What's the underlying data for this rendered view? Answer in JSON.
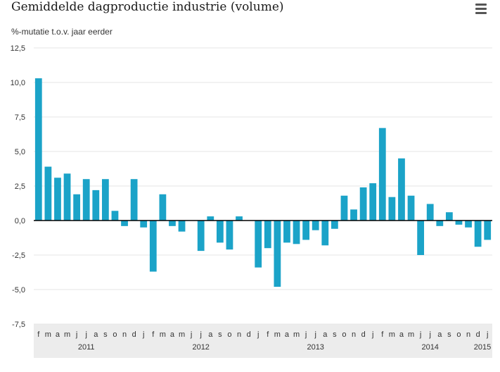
{
  "header": {
    "title": "Gemiddelde dagproductie industrie (volume)",
    "unit": "%-mutatie t.o.v. jaar eerder",
    "menu_icon": "hamburger-menu-icon"
  },
  "colors": {
    "bar": "#1ba3c8",
    "grid": "#e6e6e6",
    "axis_band": "#ececec",
    "zero_line": "#000000"
  },
  "chart_data": {
    "type": "bar",
    "title": "Gemiddelde dagproductie industrie (volume)",
    "ylabel": "%-mutatie t.o.v. jaar eerder",
    "xlabel": "",
    "ylim": [
      -7.5,
      12.5
    ],
    "yticks": [
      "12,5",
      "10,0",
      "7,5",
      "5,0",
      "2,5",
      "0,0",
      "-2,5",
      "-5,0",
      "-7,5"
    ],
    "ytick_values": [
      12.5,
      10,
      7.5,
      5,
      2.5,
      0,
      -2.5,
      -5,
      -7.5
    ],
    "grid": true,
    "categories": [
      "f",
      "m",
      "a",
      "m",
      "j",
      "j",
      "a",
      "s",
      "o",
      "n",
      "d",
      "j",
      "f",
      "m",
      "a",
      "m",
      "j",
      "j",
      "a",
      "s",
      "o",
      "n",
      "d",
      "j",
      "f",
      "m",
      "a",
      "m",
      "j",
      "j",
      "a",
      "s",
      "o",
      "n",
      "d",
      "j",
      "f",
      "m",
      "a",
      "m",
      "j",
      "j",
      "a",
      "s",
      "o",
      "n",
      "d",
      "j"
    ],
    "years": [
      {
        "label": "2011",
        "index": 5
      },
      {
        "label": "2012",
        "index": 17
      },
      {
        "label": "2013",
        "index": 29
      },
      {
        "label": "2014",
        "index": 41
      },
      {
        "label": "2015",
        "index": 47
      }
    ],
    "values": [
      10.3,
      3.9,
      3.1,
      3.4,
      1.9,
      3.0,
      2.2,
      3.0,
      0.7,
      -0.4,
      3.0,
      -0.5,
      -3.7,
      1.9,
      -0.4,
      -0.8,
      0.0,
      -2.2,
      0.3,
      -1.6,
      -2.1,
      0.3,
      0.0,
      -3.4,
      -2.0,
      -4.8,
      -1.6,
      -1.7,
      -1.4,
      -0.7,
      -1.8,
      -0.6,
      1.8,
      0.8,
      2.4,
      2.7,
      6.7,
      1.7,
      4.5,
      1.8,
      -2.5,
      1.2,
      -0.4,
      0.6,
      -0.3,
      -0.5,
      -1.9,
      -1.4
    ]
  }
}
